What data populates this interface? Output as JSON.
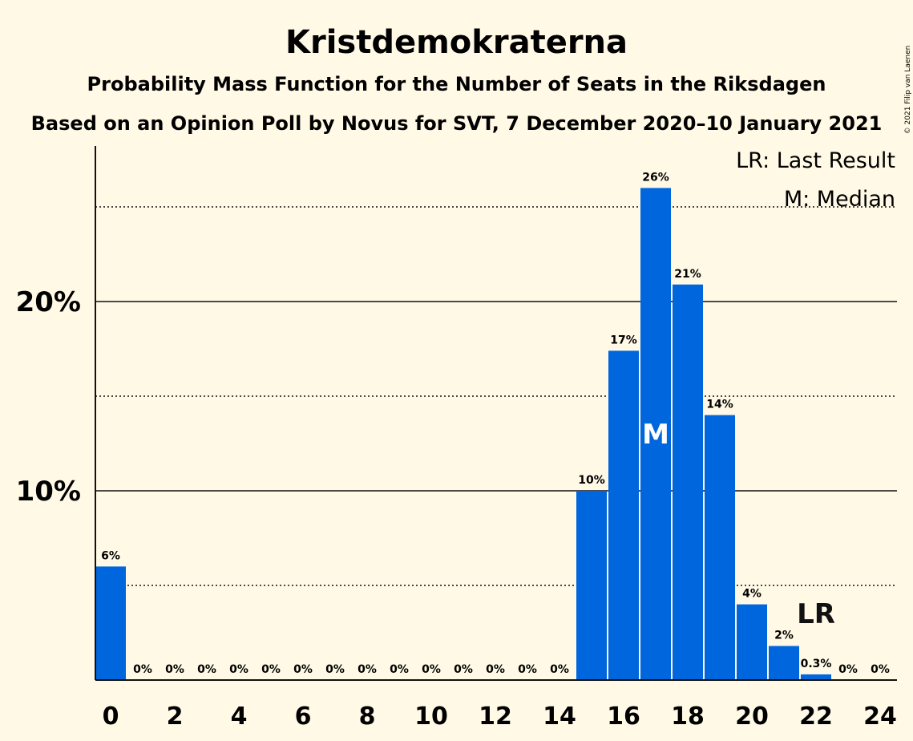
{
  "chart_data": {
    "type": "bar",
    "title": "Kristdemokraterna",
    "subtitle": "Probability Mass Function for the Number of Seats in the Riksdagen",
    "subtitle2": "Based on an Opinion Poll by Novus for SVT, 7 December 2020–10 January 2021",
    "copyright": "© 2021 Filip van Laenen",
    "x": [
      0,
      1,
      2,
      3,
      4,
      5,
      6,
      7,
      8,
      9,
      10,
      11,
      12,
      13,
      14,
      15,
      16,
      17,
      18,
      19,
      20,
      21,
      22,
      23,
      24
    ],
    "values": [
      6,
      0,
      0,
      0,
      0,
      0,
      0,
      0,
      0,
      0,
      0,
      0,
      0,
      0,
      0,
      10,
      17.4,
      26,
      20.9,
      14,
      4,
      1.8,
      0.3,
      0,
      0
    ],
    "data_labels": [
      "6%",
      "0%",
      "0%",
      "0%",
      "0%",
      "0%",
      "0%",
      "0%",
      "0%",
      "0%",
      "0%",
      "0%",
      "0%",
      "0%",
      "0%",
      "10%",
      "17%",
      "26%",
      "21%",
      "14%",
      "4%",
      "2%",
      "0.3%",
      "0%",
      "0%"
    ],
    "xticks": [
      0,
      2,
      4,
      6,
      8,
      10,
      12,
      14,
      16,
      18,
      20,
      22,
      24
    ],
    "yticks": [
      {
        "value": 10,
        "label": "10%"
      },
      {
        "value": 20,
        "label": "20%"
      }
    ],
    "minor_gridlines": [
      5,
      15,
      25
    ],
    "ylim": [
      0,
      28
    ],
    "bar_color": "#0066dd",
    "background": "#fff9e6",
    "median": {
      "seat": 17,
      "label": "M"
    },
    "last_result": {
      "seat": 22,
      "label": "LR"
    },
    "legend": [
      "LR: Last Result",
      "M: Median"
    ],
    "legend_position": "top-right"
  }
}
